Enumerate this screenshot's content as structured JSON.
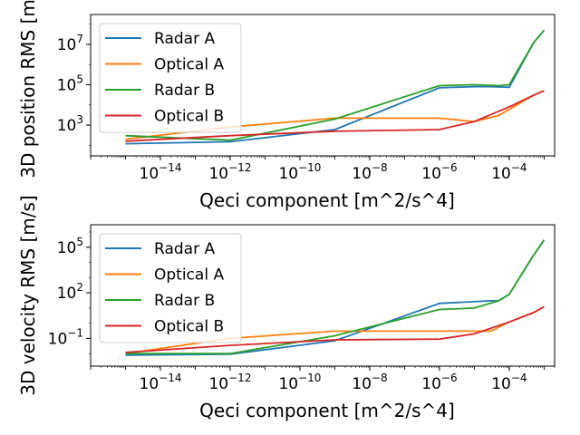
{
  "chart_data": [
    {
      "type": "line",
      "xlabel": "Qeci component [m^2/s^4]",
      "ylabel": "3D position RMS [m]",
      "xscale": "log",
      "yscale": "log",
      "xlim": [
        1e-16,
        0.002
      ],
      "ylim": [
        30,
        300000000.0
      ],
      "xticks": [
        {
          "value": 1e-14,
          "base": "10",
          "exp": "−14"
        },
        {
          "value": 1e-12,
          "base": "10",
          "exp": "−12"
        },
        {
          "value": 1e-10,
          "base": "10",
          "exp": "−10"
        },
        {
          "value": 1e-08,
          "base": "10",
          "exp": "−8"
        },
        {
          "value": 1e-06,
          "base": "10",
          "exp": "−6"
        },
        {
          "value": 0.0001,
          "base": "10",
          "exp": "−4"
        }
      ],
      "yticks": [
        {
          "value": 1000.0,
          "base": "10",
          "exp": "3"
        },
        {
          "value": 100000.0,
          "base": "10",
          "exp": "5"
        },
        {
          "value": 10000000.0,
          "base": "10",
          "exp": "7"
        }
      ],
      "legend_position": "top-left",
      "grid": false,
      "series": [
        {
          "name": "Radar A",
          "color": "#1f77b4",
          "x": [
            1e-15,
            1e-12,
            1e-09,
            1e-06,
            1e-05,
            3e-05,
            0.0001,
            0.0005,
            0.001
          ],
          "y": [
            120,
            150,
            600,
            70000,
            80000,
            80000,
            75000,
            12000000.0,
            50000000.0
          ]
        },
        {
          "name": "Optical A",
          "color": "#ff7f0e",
          "x": [
            1e-15,
            1e-12,
            1e-09,
            1e-06,
            1e-05,
            5e-05,
            0.0001,
            0.0005,
            0.001
          ],
          "y": [
            200,
            800,
            2200,
            2200,
            1500,
            3000,
            6000,
            30000,
            50000
          ]
        },
        {
          "name": "Radar B",
          "color": "#2ca02c",
          "x": [
            1e-15,
            1e-12,
            1e-09,
            1e-06,
            1e-05,
            5e-05,
            0.0001,
            0.0005,
            0.001
          ],
          "y": [
            300,
            180,
            2000,
            90000,
            100000,
            90000,
            100000,
            12000000.0,
            50000000.0
          ]
        },
        {
          "name": "Optical B",
          "color": "#d62728",
          "x": [
            1e-15,
            1e-12,
            1e-09,
            1e-06,
            1e-05,
            0.0001,
            0.0005,
            0.001
          ],
          "y": [
            160,
            300,
            500,
            600,
            1500,
            8000,
            30000,
            50000
          ]
        }
      ]
    },
    {
      "type": "line",
      "xlabel": "Qeci component [m^2/s^4]",
      "ylabel": "3D velocity RMS [m/s]",
      "xscale": "log",
      "yscale": "log",
      "xlim": [
        1e-16,
        0.002
      ],
      "ylim": [
        0.0015,
        3000000.0
      ],
      "xticks": [
        {
          "value": 1e-14,
          "base": "10",
          "exp": "−14"
        },
        {
          "value": 1e-12,
          "base": "10",
          "exp": "−12"
        },
        {
          "value": 1e-10,
          "base": "10",
          "exp": "−10"
        },
        {
          "value": 1e-08,
          "base": "10",
          "exp": "−8"
        },
        {
          "value": 1e-06,
          "base": "10",
          "exp": "−6"
        },
        {
          "value": 0.0001,
          "base": "10",
          "exp": "−4"
        }
      ],
      "yticks": [
        {
          "value": 0.1,
          "base": "10",
          "exp": "−1"
        },
        {
          "value": 100,
          "base": "10",
          "exp": "2"
        },
        {
          "value": 100000.0,
          "base": "10",
          "exp": "5"
        }
      ],
      "legend_position": "top-left",
      "grid": false,
      "series": [
        {
          "name": "Radar A",
          "color": "#1f77b4",
          "x": [
            1e-15,
            1e-12,
            1e-09,
            1e-06,
            3e-05,
            5e-05,
            0.0001,
            0.0005,
            0.001
          ],
          "y": [
            0.008,
            0.009,
            0.07,
            20,
            30,
            30,
            80,
            30000,
            300000
          ]
        },
        {
          "name": "Optical A",
          "color": "#ff7f0e",
          "x": [
            1e-15,
            1e-12,
            1e-09,
            1e-06,
            3e-05,
            0.0001,
            0.0005,
            0.001
          ],
          "y": [
            0.01,
            0.1,
            0.3,
            0.3,
            0.3,
            1.2,
            5,
            12
          ]
        },
        {
          "name": "Radar B",
          "color": "#2ca02c",
          "x": [
            1e-15,
            1e-12,
            1e-09,
            1e-06,
            1e-05,
            5e-05,
            0.0001,
            0.0005,
            0.001
          ],
          "y": [
            0.01,
            0.01,
            0.15,
            8,
            10,
            30,
            80,
            30000,
            300000
          ]
        },
        {
          "name": "Optical B",
          "color": "#d62728",
          "x": [
            1e-15,
            1e-12,
            1e-09,
            1e-06,
            1e-05,
            0.0001,
            0.0005,
            0.001
          ],
          "y": [
            0.012,
            0.035,
            0.08,
            0.09,
            0.2,
            1.2,
            5,
            12
          ]
        }
      ]
    }
  ]
}
